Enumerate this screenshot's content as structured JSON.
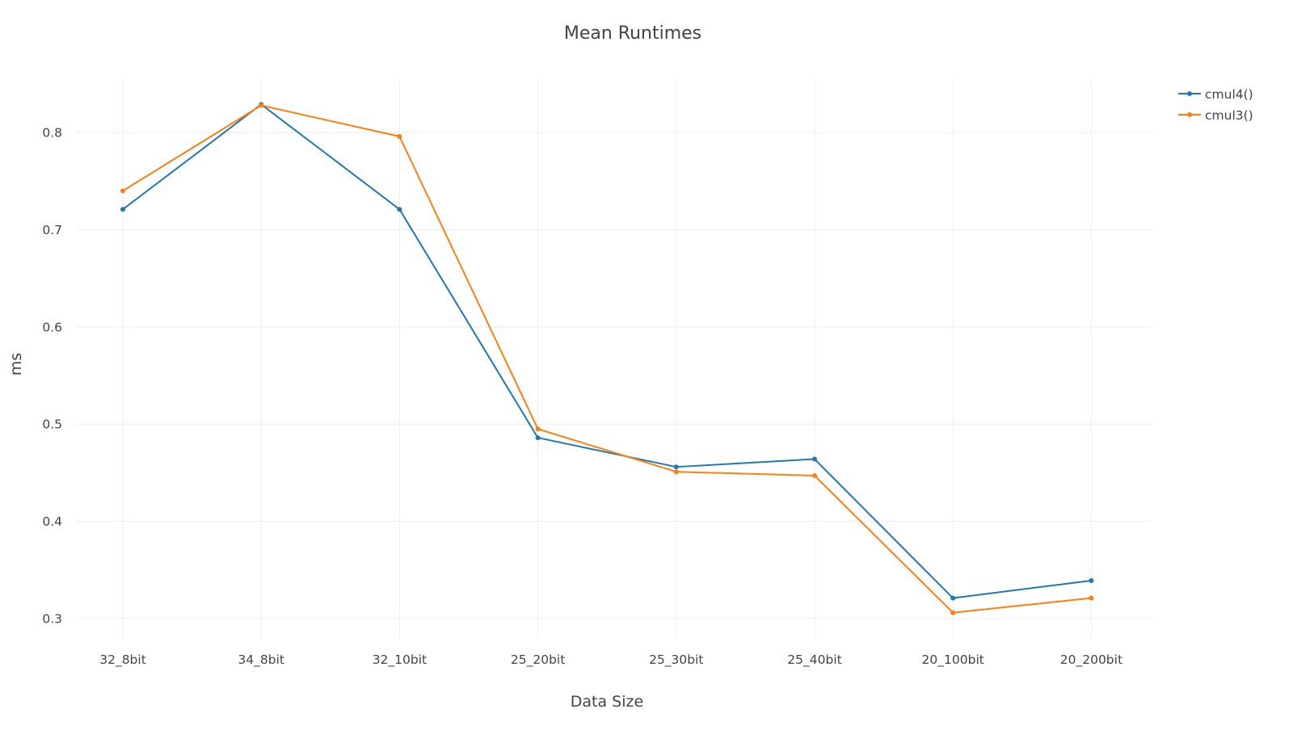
{
  "chart_data": {
    "type": "line",
    "title": "Mean Runtimes",
    "xlabel": "Data Size",
    "ylabel": "ms",
    "categories": [
      "32_8bit",
      "34_8bit",
      "32_10bit",
      "25_20bit",
      "25_30bit",
      "25_40bit",
      "20_100bit",
      "20_200bit"
    ],
    "ylim": [
      0.28,
      0.855
    ],
    "yticks": [
      0.3,
      0.4,
      0.5,
      0.6,
      0.7,
      0.8
    ],
    "ytick_labels": [
      "0.3",
      "0.4",
      "0.5",
      "0.6",
      "0.7",
      "0.8"
    ],
    "grid": true,
    "legend_position": "top-right",
    "series": [
      {
        "name": "cmul4()",
        "color": "#1f77b4",
        "values": [
          0.721,
          0.829,
          0.721,
          0.486,
          0.456,
          0.464,
          0.321,
          0.339
        ]
      },
      {
        "name": "cmul3()",
        "color": "#ff7f0e",
        "values": [
          0.74,
          0.828,
          0.796,
          0.495,
          0.451,
          0.447,
          0.306,
          0.321
        ]
      }
    ]
  }
}
